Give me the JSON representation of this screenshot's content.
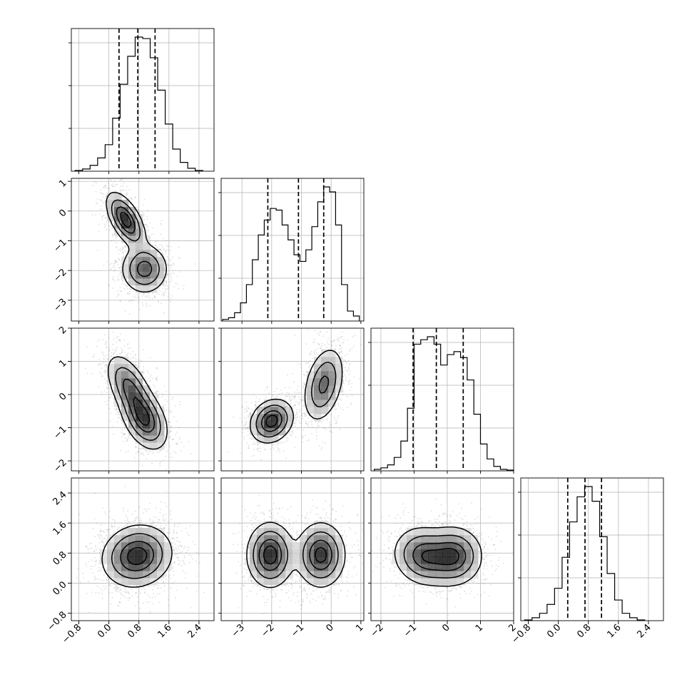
{
  "chart_data": {
    "type": "corner",
    "parameters": 4,
    "grid": true,
    "axes": {
      "x0": {
        "ticks": [
          "−0.8",
          "0.0",
          "0.8",
          "1.6",
          "2.4"
        ],
        "range": [
          -1.0,
          2.8
        ]
      },
      "x1": {
        "ticks": [
          "−3",
          "−2",
          "−1",
          "0",
          "1"
        ],
        "range": [
          -3.7,
          1.1
        ]
      },
      "x2": {
        "ticks": [
          "−2",
          "−1",
          "0",
          "1",
          "2"
        ],
        "range": [
          -2.3,
          2.0
        ]
      },
      "x3": {
        "ticks": [
          "−0.8",
          "0.0",
          "0.8",
          "1.6",
          "2.4"
        ],
        "range": [
          -1.0,
          2.8
        ]
      }
    },
    "histograms": [
      {
        "param": 0,
        "edges": [
          -0.9,
          -0.7,
          -0.5,
          -0.3,
          -0.1,
          0.1,
          0.3,
          0.5,
          0.7,
          0.9,
          1.1,
          1.3,
          1.5,
          1.7,
          1.9,
          2.1,
          2.3,
          2.5
        ],
        "counts": [
          0.5,
          1.5,
          4,
          9,
          18,
          36,
          59,
          78,
          91,
          90,
          77,
          55,
          32,
          15,
          6,
          2,
          0.5
        ],
        "quantiles": [
          0.27,
          0.77,
          1.23
        ]
      },
      {
        "param": 1,
        "edges": [
          -3.65,
          -3.45,
          -3.25,
          -3.05,
          -2.85,
          -2.65,
          -2.45,
          -2.25,
          -2.05,
          -1.85,
          -1.65,
          -1.45,
          -1.25,
          -1.05,
          -0.85,
          -0.65,
          -0.45,
          -0.25,
          -0.05,
          0.15,
          0.35,
          0.55,
          0.75,
          0.95
        ],
        "counts": [
          1,
          2,
          5,
          11,
          22,
          37,
          52,
          61,
          68,
          67,
          58,
          49,
          40,
          36,
          43,
          57,
          72,
          81,
          78,
          58,
          22,
          6,
          3
        ],
        "quantiles": [
          -2.13,
          -1.1,
          -0.25
        ]
      },
      {
        "param": 2,
        "edges": [
          -2.2,
          -2.0,
          -1.8,
          -1.6,
          -1.4,
          -1.2,
          -1.0,
          -0.8,
          -0.6,
          -0.4,
          -0.2,
          0.0,
          0.2,
          0.4,
          0.6,
          0.8,
          1.0,
          1.2,
          1.4,
          1.6,
          1.8,
          2.0
        ],
        "counts": [
          1,
          2,
          4,
          9,
          20,
          42,
          85,
          88,
          90,
          85,
          71,
          78,
          80,
          76,
          61,
          38,
          18,
          8,
          3,
          1,
          0.5
        ],
        "quantiles": [
          -1.03,
          -0.33,
          0.48
        ]
      },
      {
        "param": 3,
        "edges": [
          -0.9,
          -0.7,
          -0.5,
          -0.3,
          -0.1,
          0.1,
          0.3,
          0.5,
          0.7,
          0.9,
          1.1,
          1.3,
          1.5,
          1.7,
          1.9,
          2.1,
          2.3
        ],
        "counts": [
          0.5,
          2,
          5,
          11,
          22,
          43,
          67,
          84,
          91,
          81,
          57,
          32,
          14,
          5,
          2,
          0.5
        ],
        "quantiles": [
          0.25,
          0.71,
          1.15
        ]
      }
    ],
    "joint": [
      {
        "x": 0,
        "y": 1,
        "modes": [
          [
            0.45,
            -0.3,
            0.25,
            0.45,
            -0.6,
            0.5
          ],
          [
            0.95,
            -1.95,
            0.3,
            0.4,
            0.0,
            0.5
          ]
        ]
      },
      {
        "x": 0,
        "y": 2,
        "modes": [
          [
            0.55,
            0.2,
            0.3,
            0.5,
            -0.55,
            0.45
          ],
          [
            0.95,
            -0.75,
            0.3,
            0.45,
            -0.4,
            0.55
          ]
        ]
      },
      {
        "x": 1,
        "y": 2,
        "modes": [
          [
            -2.0,
            -0.8,
            0.35,
            0.32,
            0.2,
            0.48
          ],
          [
            -0.25,
            0.3,
            0.33,
            0.55,
            0.35,
            0.52
          ]
        ]
      },
      {
        "x": 0,
        "y": 3,
        "modes": [
          [
            0.75,
            0.72,
            0.45,
            0.4,
            0.1,
            1.0
          ]
        ]
      },
      {
        "x": 1,
        "y": 3,
        "modes": [
          [
            -2.05,
            0.75,
            0.38,
            0.42,
            0.0,
            0.5
          ],
          [
            -0.35,
            0.75,
            0.4,
            0.42,
            0.0,
            0.5
          ]
        ]
      },
      {
        "x": 2,
        "y": 3,
        "modes": [
          [
            -0.7,
            0.72,
            0.45,
            0.38,
            -0.1,
            0.5
          ],
          [
            0.2,
            0.72,
            0.42,
            0.38,
            0.0,
            0.5
          ]
        ]
      }
    ]
  }
}
